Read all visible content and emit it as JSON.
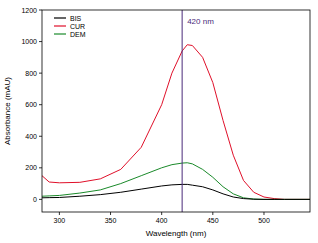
{
  "chart_data": {
    "type": "line",
    "x_label": "Wavelength (nm)",
    "y_label": "Absorbance (mAU)",
    "x": [
      283,
      290,
      300,
      320,
      340,
      360,
      380,
      400,
      410,
      420,
      425,
      430,
      440,
      450,
      460,
      470,
      480,
      490,
      500,
      510,
      520,
      545
    ],
    "series": [
      {
        "name": "BIS",
        "color": "#000000",
        "values": [
          10,
          11,
          12,
          20,
          30,
          45,
          65,
          85,
          92,
          95,
          95,
          90,
          80,
          60,
          35,
          15,
          5,
          1,
          0,
          0,
          0,
          0
        ]
      },
      {
        "name": "CUR",
        "color": "#e0102a",
        "values": [
          150,
          110,
          105,
          108,
          130,
          190,
          330,
          600,
          800,
          940,
          980,
          975,
          900,
          740,
          500,
          280,
          120,
          45,
          15,
          5,
          0,
          0
        ]
      },
      {
        "name": "DEM",
        "color": "#1a8a2a",
        "values": [
          20,
          22,
          25,
          40,
          60,
          100,
          150,
          200,
          220,
          230,
          232,
          225,
          190,
          140,
          80,
          35,
          10,
          2,
          0,
          0,
          0,
          0
        ]
      }
    ],
    "annotations": [
      {
        "x": 420,
        "text": "420 nm",
        "color": "#4a2a7a"
      }
    ],
    "xlim": [
      283,
      545
    ],
    "xticks": [
      300,
      350,
      400,
      450,
      500
    ],
    "ylim": [
      -80,
      1200
    ],
    "yticks": [
      0,
      200,
      400,
      600,
      800,
      1000,
      1200
    ],
    "legend": "upper left",
    "grid": false
  }
}
